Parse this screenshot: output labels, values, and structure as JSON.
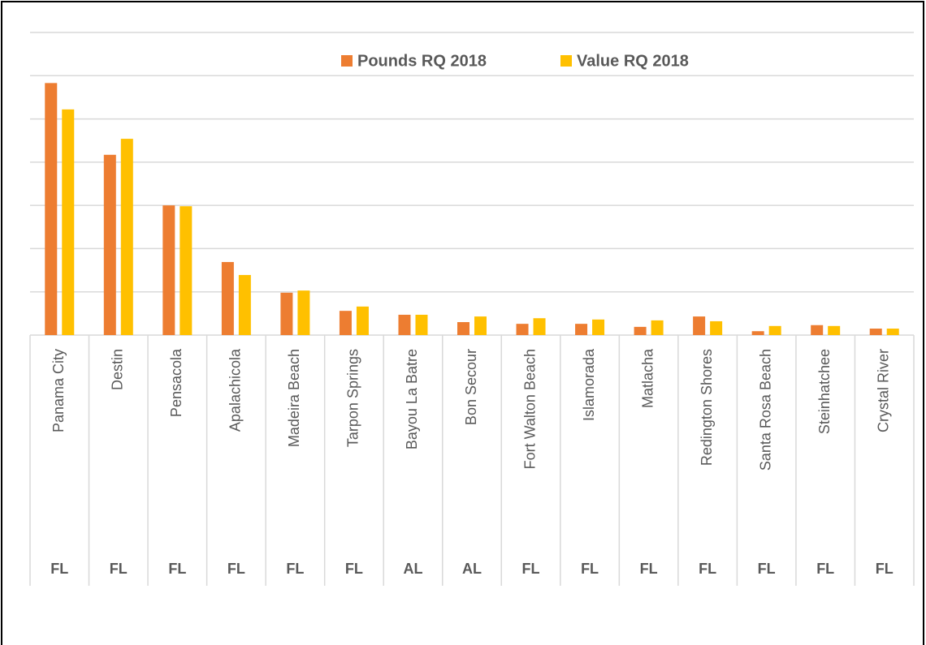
{
  "chart_data": {
    "type": "bar",
    "categories": [
      "Panama City",
      "Destin",
      "Pensacola",
      "Apalachicola",
      "Madeira Beach",
      "Tarpon Springs",
      "Bayou La Batre",
      "Bon Secour",
      "Fort Walton Beach",
      "Islamorada",
      "Matlacha",
      "Redington Shores",
      "Santa Rosa Beach",
      "Steinhatchee",
      "Crystal River"
    ],
    "states": [
      "FL",
      "FL",
      "FL",
      "FL",
      "FL",
      "FL",
      "AL",
      "AL",
      "FL",
      "FL",
      "FL",
      "FL",
      "FL",
      "FL",
      "FL"
    ],
    "series": [
      {
        "name": "Pounds RQ 2018",
        "color": "#ed7d31",
        "values": [
          5.83,
          4.17,
          3.0,
          1.69,
          0.98,
          0.56,
          0.47,
          0.3,
          0.26,
          0.26,
          0.19,
          0.43,
          0.09,
          0.23,
          0.15
        ]
      },
      {
        "name": "Value RQ 2018",
        "color": "#ffc000",
        "values": [
          5.22,
          4.54,
          2.98,
          1.39,
          1.03,
          0.66,
          0.47,
          0.43,
          0.39,
          0.36,
          0.34,
          0.32,
          0.21,
          0.21,
          0.15
        ]
      }
    ],
    "ylim": [
      0,
      7
    ],
    "yticks": [
      0,
      1,
      2,
      3,
      4,
      5,
      6,
      7
    ],
    "grid": true,
    "legend": "top"
  }
}
